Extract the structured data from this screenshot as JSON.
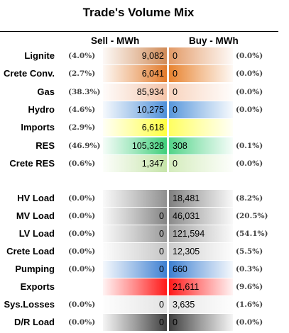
{
  "title": "Trade's Volume Mix",
  "headers": {
    "sell": "Sell - MWh",
    "buy": "Buy - MWh"
  },
  "rows": [
    {
      "label": "Lignite",
      "sell_pct": "(4.0%)",
      "sell": "9,082",
      "buy": "0",
      "buy_pct": "(0.0%)",
      "sell_color": "#d08a56",
      "buy_color": "#e39a66"
    },
    {
      "label": "Crete Conv.",
      "sell_pct": "(2.7%)",
      "sell": "6,041",
      "buy": "0",
      "buy_pct": "(0.0%)",
      "sell_color": "#e27a2a",
      "buy_color": "#e8832f"
    },
    {
      "label": "Gas",
      "sell_pct": "(38.3%)",
      "sell": "85,934",
      "buy": "0",
      "buy_pct": "(0.0%)",
      "sell_color": "#f3c3a8",
      "buy_color": "#f8d3bd"
    },
    {
      "label": "Hydro",
      "sell_pct": "(4.6%)",
      "sell": "10,275",
      "buy": "0",
      "buy_pct": "(0.0%)",
      "sell_color": "#4d8fd8",
      "buy_color": "#5897db"
    },
    {
      "label": "Imports",
      "sell_pct": "(2.9%)",
      "sell": "6,618",
      "buy": "",
      "buy_pct": "",
      "sell_color": "#ffff40",
      "buy_color": "#ffff60"
    },
    {
      "label": "RES",
      "sell_pct": "(46.9%)",
      "sell": "105,328",
      "buy": "308",
      "buy_pct": "(0.1%)",
      "sell_color": "#3fcf7a",
      "buy_color": "#52d488"
    },
    {
      "label": "Crete RES",
      "sell_pct": "(0.6%)",
      "sell": "1,347",
      "buy": "0",
      "buy_pct": "(0.0%)",
      "sell_color": "#c5e4a8",
      "buy_color": "#d4ecbc"
    },
    {
      "label": "HV Load",
      "sell_pct": "(0.0%)",
      "sell": "",
      "buy": "18,481",
      "buy_pct": "(8.2%)",
      "sell_color": "#8f8f8f",
      "buy_color": "#7f7f7f"
    },
    {
      "label": "MV Load",
      "sell_pct": "(0.0%)",
      "sell": "0",
      "buy": "46,031",
      "buy_pct": "(20.5%)",
      "sell_color": "#838383",
      "buy_color": "#8a8a8a"
    },
    {
      "label": "LV Load",
      "sell_pct": "(0.0%)",
      "sell": "0",
      "buy": "121,594",
      "buy_pct": "(54.1%)",
      "sell_color": "#9a9a9a",
      "buy_color": "#a2a2a2"
    },
    {
      "label": "Crete Load",
      "sell_pct": "(0.0%)",
      "sell": "0",
      "buy": "12,305",
      "buy_pct": "(5.5%)",
      "sell_color": "#c6c6c6",
      "buy_color": "#cdcdcd"
    },
    {
      "label": "Pumping",
      "sell_pct": "(0.0%)",
      "sell": "0",
      "buy": "660",
      "buy_pct": "(0.3%)",
      "sell_color": "#3d7fd1",
      "buy_color": "#3d7fd1"
    },
    {
      "label": "Exports",
      "sell_pct": "",
      "sell": "",
      "buy": "21,611",
      "buy_pct": "(9.6%)",
      "sell_color": "#ff1818",
      "buy_color": "#ff1818"
    },
    {
      "label": "Sys.Losses",
      "sell_pct": "(0.0%)",
      "sell": "0",
      "buy": "3,635",
      "buy_pct": "(1.6%)",
      "sell_color": "#e3e3e3",
      "buy_color": "#e3e3e3"
    },
    {
      "label": "D/R Load",
      "sell_pct": "(0.0%)",
      "sell": "0",
      "buy": "0",
      "buy_pct": "(0.0%)",
      "sell_color": "#3f3f3f",
      "buy_color": "#3f3f3f"
    }
  ]
}
